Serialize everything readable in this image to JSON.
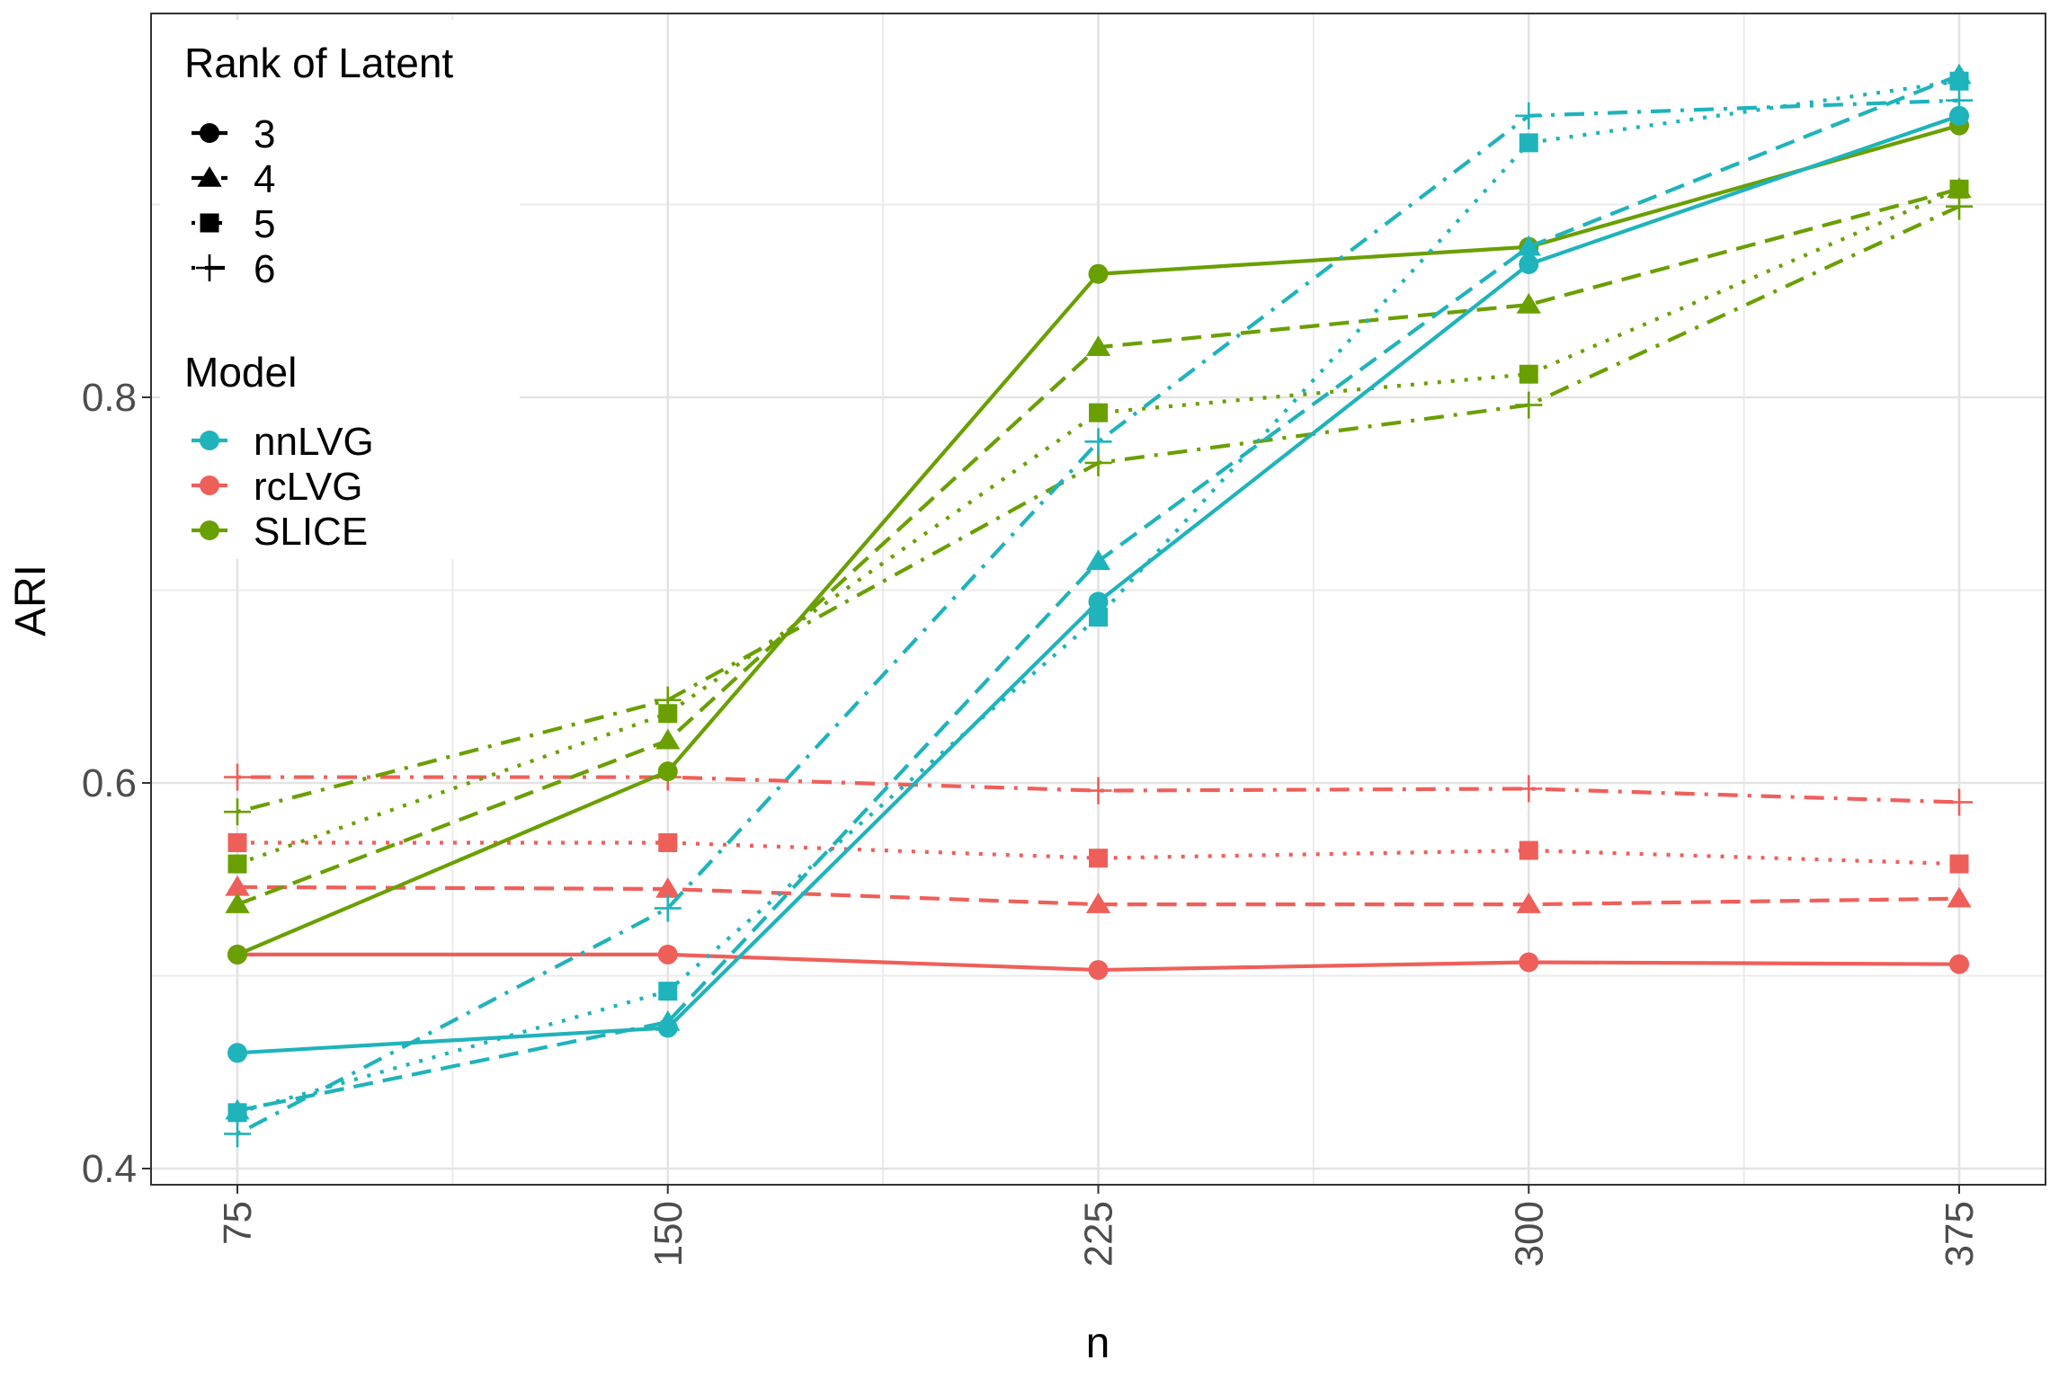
{
  "chart_data": {
    "type": "line",
    "xlabel": "n",
    "ylabel": "ARI",
    "categories": [
      "75",
      "150",
      "225",
      "300",
      "375"
    ],
    "x": [
      75,
      150,
      225,
      300,
      375
    ],
    "ylim": [
      0.39,
      0.99
    ],
    "yticks": [
      0.4,
      0.6,
      0.8
    ],
    "ytick_labels": [
      "0.4",
      "0.6",
      "0.8"
    ],
    "grid": true,
    "legend_position": "top-left",
    "legends": {
      "shape": {
        "title": "Rank of Latent",
        "entries": [
          {
            "label": "3",
            "shape": "circle",
            "linetype": "solid"
          },
          {
            "label": "4",
            "shape": "triangle",
            "linetype": "dashed"
          },
          {
            "label": "5",
            "shape": "square",
            "linetype": "dotted"
          },
          {
            "label": "6",
            "shape": "plus",
            "linetype": "dotdash"
          }
        ]
      },
      "color": {
        "title": "Model",
        "entries": [
          {
            "label": "nnLVG",
            "color": "#1fb3bb"
          },
          {
            "label": "rcLVG",
            "color": "#ef5f5a"
          },
          {
            "label": "SLICE",
            "color": "#6a9f00"
          }
        ]
      }
    },
    "series": [
      {
        "model": "rcLVG",
        "rank": "3",
        "values": [
          0.511,
          0.511,
          0.503,
          0.507,
          0.506
        ]
      },
      {
        "model": "rcLVG",
        "rank": "4",
        "values": [
          0.546,
          0.545,
          0.537,
          0.537,
          0.54
        ]
      },
      {
        "model": "rcLVG",
        "rank": "5",
        "values": [
          0.569,
          0.569,
          0.561,
          0.565,
          0.558
        ]
      },
      {
        "model": "rcLVG",
        "rank": "6",
        "values": [
          0.603,
          0.603,
          0.596,
          0.597,
          0.59
        ]
      },
      {
        "model": "SLICE",
        "rank": "3",
        "values": [
          0.511,
          0.606,
          0.864,
          0.878,
          0.941
        ]
      },
      {
        "model": "SLICE",
        "rank": "4",
        "values": [
          0.537,
          0.622,
          0.826,
          0.848,
          0.908
        ]
      },
      {
        "model": "SLICE",
        "rank": "5",
        "values": [
          0.558,
          0.636,
          0.792,
          0.812,
          0.908
        ]
      },
      {
        "model": "SLICE",
        "rank": "6",
        "values": [
          0.585,
          0.643,
          0.766,
          0.796,
          0.899
        ]
      },
      {
        "model": "nnLVG",
        "rank": "3",
        "values": [
          0.46,
          0.473,
          0.694,
          0.869,
          0.946
        ]
      },
      {
        "model": "nnLVG",
        "rank": "4",
        "values": [
          0.43,
          0.476,
          0.715,
          0.878,
          0.967
        ]
      },
      {
        "model": "nnLVG",
        "rank": "5",
        "values": [
          0.429,
          0.492,
          0.686,
          0.932,
          0.964
        ]
      },
      {
        "model": "nnLVG",
        "rank": "6",
        "values": [
          0.418,
          0.535,
          0.777,
          0.946,
          0.954
        ]
      }
    ]
  }
}
